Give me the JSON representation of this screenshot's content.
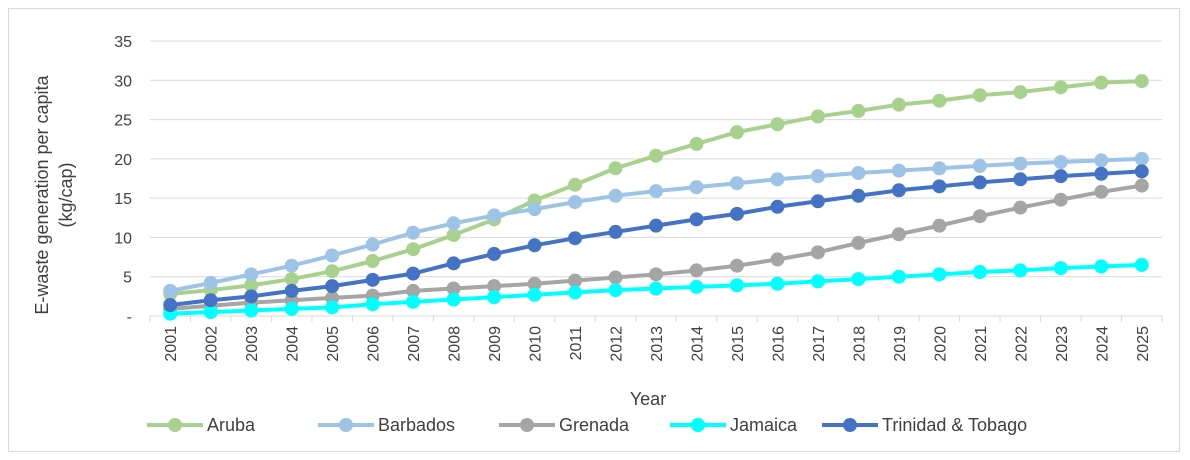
{
  "chart_data": {
    "type": "line",
    "title": "",
    "xlabel": "Year",
    "ylabel_line1": "E-waste generation per capita",
    "ylabel_line2": "(kg/cap)",
    "ylim": [
      0,
      35
    ],
    "yticks": [
      {
        "value": 0,
        "label": "-"
      },
      {
        "value": 5,
        "label": "5"
      },
      {
        "value": 10,
        "label": "10"
      },
      {
        "value": 15,
        "label": "15"
      },
      {
        "value": 20,
        "label": "20"
      },
      {
        "value": 25,
        "label": "25"
      },
      {
        "value": 30,
        "label": "30"
      },
      {
        "value": 35,
        "label": "35"
      }
    ],
    "grid": true,
    "legend_position": "bottom",
    "categories": [
      "2001",
      "2002",
      "2003",
      "2004",
      "2005",
      "2006",
      "2007",
      "2008",
      "2009",
      "2010",
      "2011",
      "2012",
      "2013",
      "2014",
      "2015",
      "2016",
      "2017",
      "2018",
      "2019",
      "2020",
      "2021",
      "2022",
      "2023",
      "2024",
      "2025"
    ],
    "series": [
      {
        "name": "Aruba",
        "color": "#a9d18e",
        "values": [
          2.8,
          3.3,
          3.9,
          4.7,
          5.7,
          7.0,
          8.5,
          10.3,
          12.3,
          14.7,
          16.7,
          18.8,
          20.4,
          21.9,
          23.4,
          24.4,
          25.4,
          26.1,
          26.9,
          27.4,
          28.1,
          28.5,
          29.1,
          29.7,
          29.9
        ]
      },
      {
        "name": "Barbados",
        "color": "#9dc3e6",
        "values": [
          3.2,
          4.2,
          5.3,
          6.4,
          7.7,
          9.1,
          10.6,
          11.8,
          12.8,
          13.6,
          14.5,
          15.3,
          15.9,
          16.4,
          16.9,
          17.4,
          17.8,
          18.2,
          18.5,
          18.8,
          19.1,
          19.4,
          19.6,
          19.8,
          20.0
        ]
      },
      {
        "name": "Grenada",
        "color": "#a5a5a5",
        "values": [
          0.9,
          1.3,
          1.7,
          2.0,
          2.3,
          2.6,
          3.2,
          3.5,
          3.8,
          4.1,
          4.5,
          4.9,
          5.3,
          5.8,
          6.4,
          7.2,
          8.1,
          9.3,
          10.4,
          11.5,
          12.7,
          13.8,
          14.8,
          15.8,
          16.6
        ]
      },
      {
        "name": "Jamaica",
        "color": "#00ffff",
        "values": [
          0.3,
          0.5,
          0.7,
          0.9,
          1.1,
          1.5,
          1.8,
          2.1,
          2.4,
          2.7,
          3.0,
          3.3,
          3.5,
          3.7,
          3.9,
          4.1,
          4.4,
          4.7,
          5.0,
          5.3,
          5.6,
          5.8,
          6.1,
          6.3,
          6.5
        ]
      },
      {
        "name": "Trinidad & Tobago",
        "color": "#4472c4",
        "values": [
          1.4,
          2.0,
          2.5,
          3.2,
          3.8,
          4.6,
          5.4,
          6.7,
          7.9,
          9.0,
          9.9,
          10.7,
          11.5,
          12.3,
          13.0,
          13.9,
          14.6,
          15.3,
          16.0,
          16.5,
          17.0,
          17.4,
          17.8,
          18.1,
          18.4
        ]
      }
    ]
  }
}
